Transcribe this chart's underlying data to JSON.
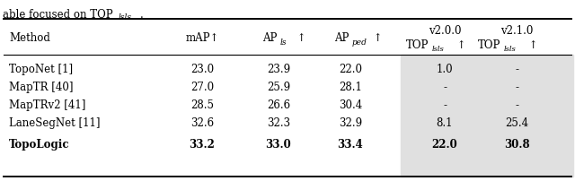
{
  "rows": [
    [
      "TopoNet [1]",
      "23.0",
      "23.9",
      "22.0",
      "1.0",
      "-"
    ],
    [
      "MapTR [40]",
      "27.0",
      "25.9",
      "28.1",
      "-",
      "-"
    ],
    [
      "MapTRv2 [41]",
      "28.5",
      "26.6",
      "30.4",
      "-",
      "-"
    ],
    [
      "LaneSegNet [11]",
      "32.6",
      "32.3",
      "32.9",
      "8.1",
      "25.4"
    ],
    [
      "TopoLogic",
      "33.2",
      "33.0",
      "33.4",
      "22.0",
      "30.8"
    ]
  ],
  "bold_row": 4,
  "shade_color": "#e0e0e0",
  "bg_color": "#ffffff",
  "fig_width": 6.4,
  "fig_height": 2.03
}
